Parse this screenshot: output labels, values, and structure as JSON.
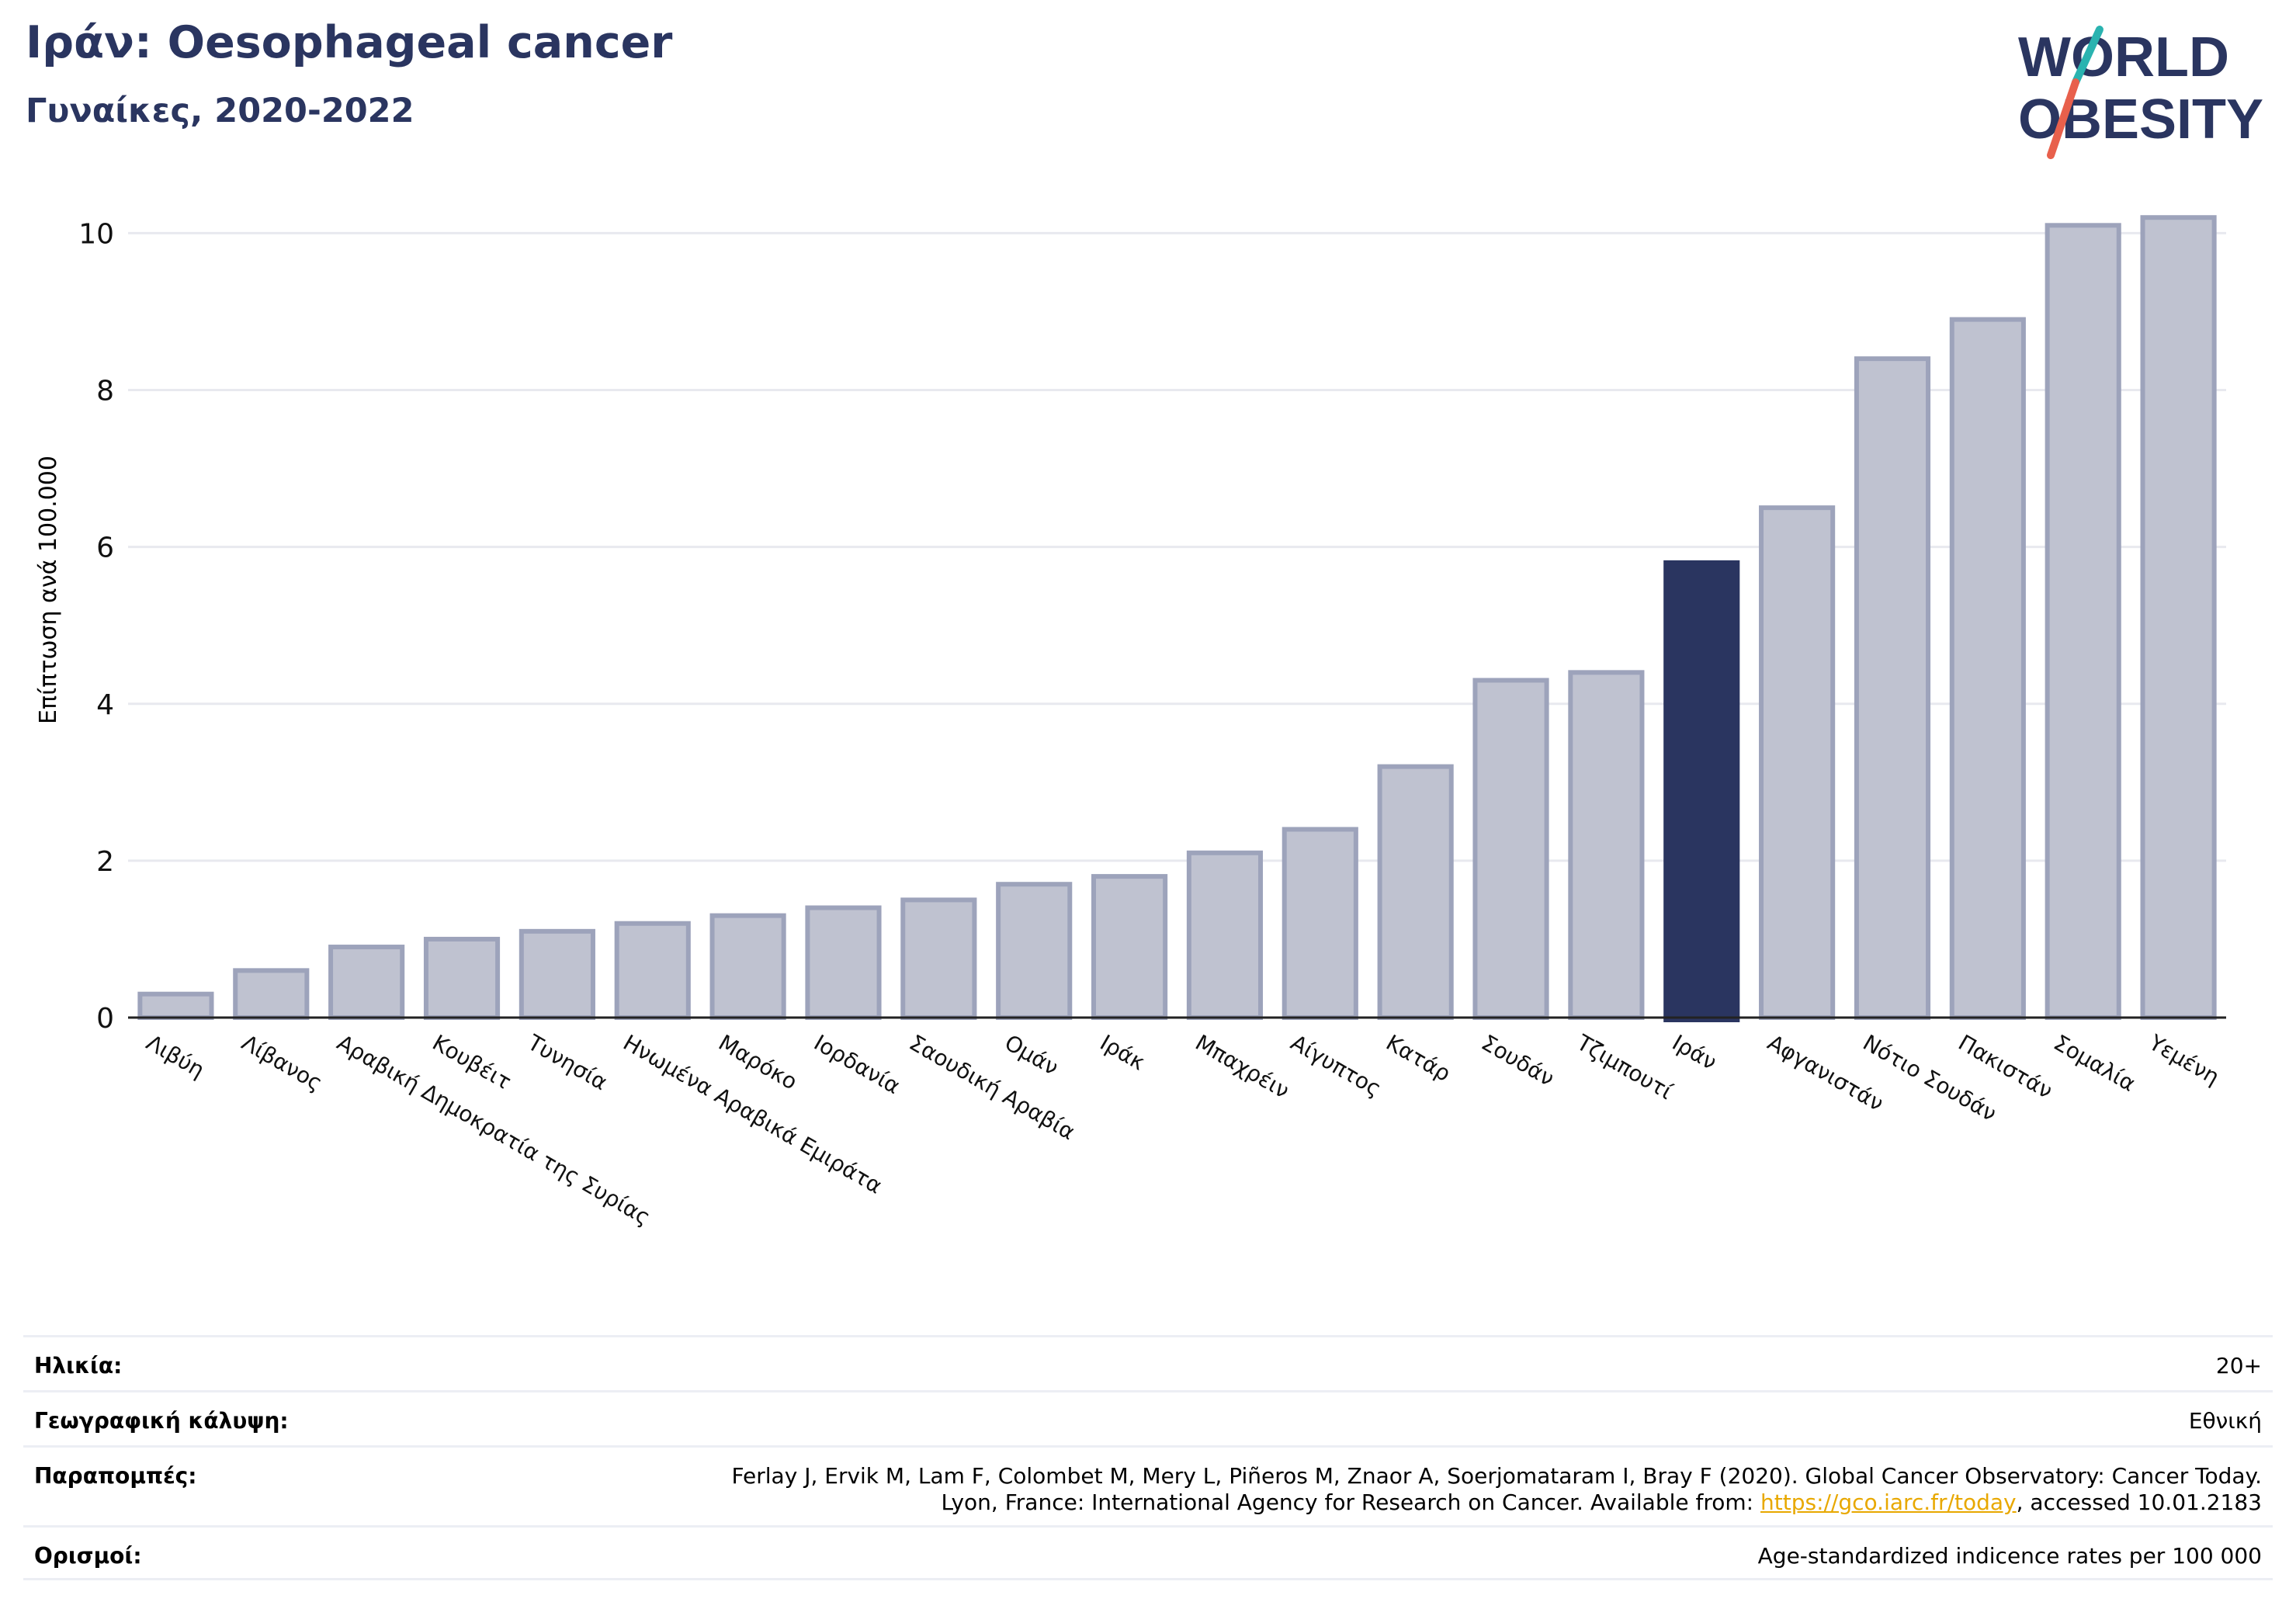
{
  "header": {
    "title": "Ιράν: Oesophageal cancer",
    "subtitle": "Γυναίκες, 2020-2022"
  },
  "logo": {
    "line1": "WORLD",
    "line2": "OBESITY",
    "accent_teal": "#2ab3b0",
    "accent_red": "#e8604c",
    "text_color": "#2a3560"
  },
  "chart_data": {
    "type": "bar",
    "ylabel": "Επίπτωση ανά 100.000",
    "ylim": [
      0,
      10.4
    ],
    "yticks": [
      0,
      2,
      4,
      6,
      8,
      10
    ],
    "grid": true,
    "highlight": "Ιράν",
    "colors": {
      "bar": "#bfc2d0",
      "bar_edge": "#9da3bb",
      "highlight": "#2a3560",
      "grid": "#e8e9ef"
    },
    "categories": [
      "Λιβύη",
      "Λίβανος",
      "Αραβική Δημοκρατία της Συρίας",
      "Κουβέιτ",
      "Τυνησία",
      "Ηνωμένα Αραβικά Εμιράτα",
      "Μαρόκο",
      "Ιορδανία",
      "Σαουδική Αραβία",
      "Ομάν",
      "Ιράκ",
      "Μπαχρέιν",
      "Αίγυπτος",
      "Κατάρ",
      "Σουδάν",
      "Τζιμπουτί",
      "Ιράν",
      "Αφγανιστάν",
      "Νότιο Σουδάν",
      "Πακιστάν",
      "Σομαλία",
      "Υεμένη"
    ],
    "values": [
      0.3,
      0.6,
      0.9,
      1.0,
      1.1,
      1.2,
      1.3,
      1.4,
      1.5,
      1.7,
      1.8,
      2.1,
      2.4,
      3.2,
      4.3,
      4.4,
      5.8,
      6.5,
      8.4,
      8.9,
      10.1,
      10.2
    ]
  },
  "meta": {
    "age_label": "Ηλικία:",
    "age_value": "20+",
    "coverage_label": "Γεωγραφική κάλυψη:",
    "coverage_value": "Εθνική",
    "refs_label": "Παραπομπές:",
    "refs_line1": "Ferlay J, Ervik M, Lam F, Colombet M, Mery L, Piñeros M, Znaor A, Soerjomataram I, Bray F (2020). Global Cancer Observatory: Cancer Today.",
    "refs_line2_pre": "Lyon, France: International Agency for Research on Cancer. Available from: ",
    "refs_link": "https://gco.iarc.fr/today",
    "refs_line2_post": ", accessed 10.01.2183",
    "defs_label": "Ορισμοί:",
    "defs_value": "Age-standardized indicence rates per 100 000"
  }
}
